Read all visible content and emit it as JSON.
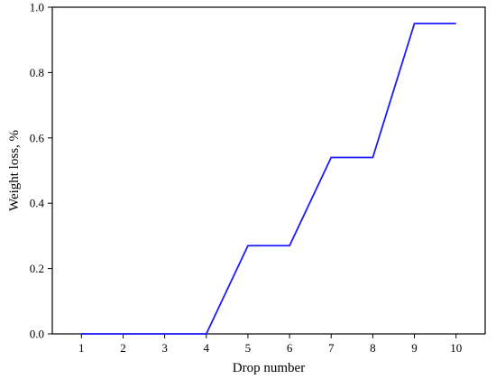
{
  "chart_data": {
    "type": "line",
    "title": "",
    "xlabel": "Drop number",
    "ylabel": "Weight loss, %",
    "x": [
      1,
      2,
      3,
      4,
      5,
      6,
      7,
      8,
      9,
      10
    ],
    "xticks": [
      "1",
      "2",
      "3",
      "4",
      "5",
      "6",
      "7",
      "8",
      "9",
      "10"
    ],
    "xlim": [
      0.3,
      10.7
    ],
    "yticks": [
      "0.0",
      "0.2",
      "0.4",
      "0.6",
      "0.8",
      "1.0"
    ],
    "ylim": [
      0,
      1.0
    ],
    "grid": false,
    "series": [
      {
        "color": "#1a1aff",
        "values": [
          0.0,
          0.0,
          0.0,
          0.0,
          0.27,
          0.27,
          0.54,
          0.54,
          0.95,
          0.95
        ]
      }
    ]
  }
}
